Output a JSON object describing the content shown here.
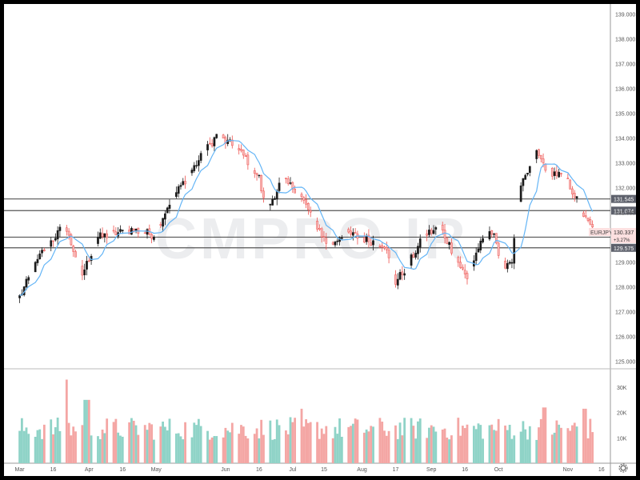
{
  "watermark": "CMPRO.IR",
  "symbol_label": "EURJPY",
  "price_label": "130.337",
  "change_label": "+3.27%",
  "colors": {
    "up": "#26a69a",
    "down": "#ef5350",
    "ma": "#64b5f6",
    "level": "#555555",
    "vol_up": "#8fd3c7",
    "vol_down": "#f4a6a4",
    "label_bg": "#5d606b"
  },
  "chart_data": {
    "type": "candlestick",
    "y_ticks": [
      "139.000",
      "138.000",
      "137.000",
      "136.000",
      "135.000",
      "134.000",
      "133.000",
      "132.000",
      "131.000",
      "130.000",
      "129.000",
      "128.000",
      "127.000",
      "126.000",
      "125.000"
    ],
    "ylim": [
      124.7,
      139.4
    ],
    "x_ticks": [
      "Mar",
      "16",
      "Apr",
      "16",
      "May",
      "Jun",
      "16",
      "Jul",
      "15",
      "Aug",
      "17",
      "Sep",
      "16",
      "Oct",
      "Nov",
      "16"
    ],
    "x_tick_days": [
      0,
      15,
      31,
      46,
      61,
      92,
      107,
      122,
      136,
      153,
      168,
      184,
      199,
      214,
      245,
      260
    ],
    "x_range_days": [
      -7,
      264
    ],
    "levels": [
      {
        "value": 131.545,
        "label": "131.545"
      },
      {
        "value": 131.074,
        "label": "131.074"
      },
      {
        "value": 130.005,
        "label": "130.005"
      },
      {
        "value": 129.575,
        "label": "129.575"
      }
    ],
    "waypoints": [
      [
        0,
        127.6
      ],
      [
        10,
        129.4
      ],
      [
        20,
        130.5
      ],
      [
        28,
        128.5
      ],
      [
        35,
        130.0
      ],
      [
        50,
        130.3
      ],
      [
        60,
        130.1
      ],
      [
        67,
        131.4
      ],
      [
        80,
        133.1
      ],
      [
        88,
        134.1
      ],
      [
        95,
        133.7
      ],
      [
        101,
        133.2
      ],
      [
        107,
        132.4
      ],
      [
        110,
        131.0
      ],
      [
        117,
        132.3
      ],
      [
        124,
        131.9
      ],
      [
        131,
        130.8
      ],
      [
        138,
        129.6
      ],
      [
        145,
        130.2
      ],
      [
        155,
        129.9
      ],
      [
        163,
        129.7
      ],
      [
        168,
        128.2
      ],
      [
        173,
        128.8
      ],
      [
        181,
        130.1
      ],
      [
        188,
        130.4
      ],
      [
        200,
        128.3
      ],
      [
        205,
        129.6
      ],
      [
        212,
        130.3
      ],
      [
        215,
        128.8
      ],
      [
        220,
        129.1
      ],
      [
        224,
        132.0
      ],
      [
        231,
        133.4
      ],
      [
        236,
        132.7
      ],
      [
        244,
        132.4
      ],
      [
        248,
        131.7
      ],
      [
        253,
        130.7
      ],
      [
        256,
        130.34
      ]
    ],
    "volume_ticks": [
      "30K",
      "20K",
      "10K"
    ],
    "volume_ylim": [
      0,
      36000
    ],
    "volume_base": 13000,
    "volume_spikes": [
      [
        20,
        33000
      ],
      [
        30,
        25000
      ],
      [
        125,
        21500
      ],
      [
        235,
        22000
      ],
      [
        252,
        21500
      ]
    ]
  }
}
